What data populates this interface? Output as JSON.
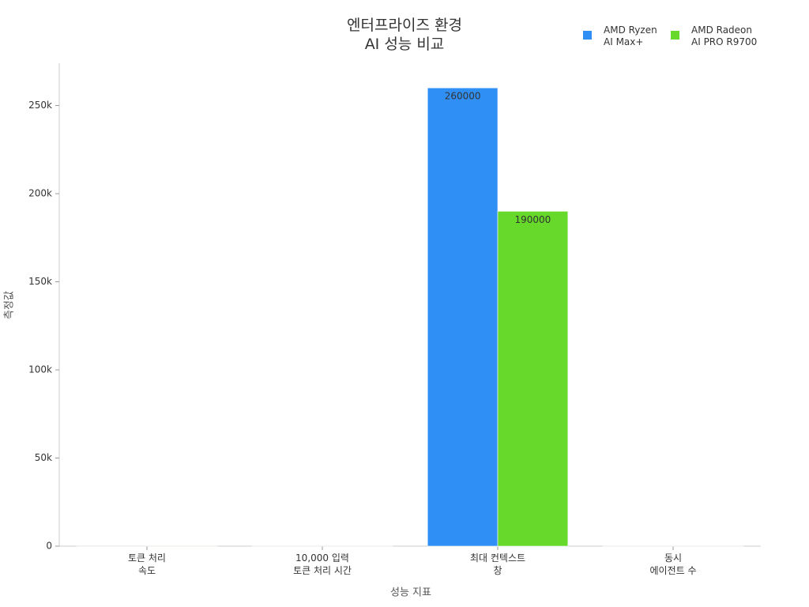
{
  "chart_data": {
    "type": "bar",
    "title": "엔터프라이즈 환경\nAI 성능 비교",
    "x_label": "성능 지표",
    "y_label": "측정값",
    "categories": [
      "토큰 처리\n속도",
      "10,000 입력\n토큰 처리 시간",
      "최대 컨텍스트\n창",
      "동시\n에이전트 수"
    ],
    "series": [
      {
        "name": "AMD Ryzen\nAI Max+",
        "color": "#2f8ff5",
        "values": [
          50,
          10,
          260000,
          10
        ],
        "value_labels": [
          null,
          null,
          "260000",
          null
        ]
      },
      {
        "name": "AMD Radeon\nAI PRO R9700",
        "color": "#66d92a",
        "values": [
          60,
          5,
          190000,
          20
        ],
        "value_labels": [
          null,
          null,
          "190000",
          null
        ]
      }
    ],
    "ylim": [
      0,
      274000
    ],
    "yticks": [
      0,
      {
        "value": 50000,
        "label": "50k"
      },
      {
        "value": 100000,
        "label": "100k"
      },
      {
        "value": 150000,
        "label": "150k"
      },
      {
        "value": 200000,
        "label": "200k"
      },
      {
        "value": 250000,
        "label": "250k"
      }
    ],
    "grid": false,
    "legend": "top-right"
  }
}
